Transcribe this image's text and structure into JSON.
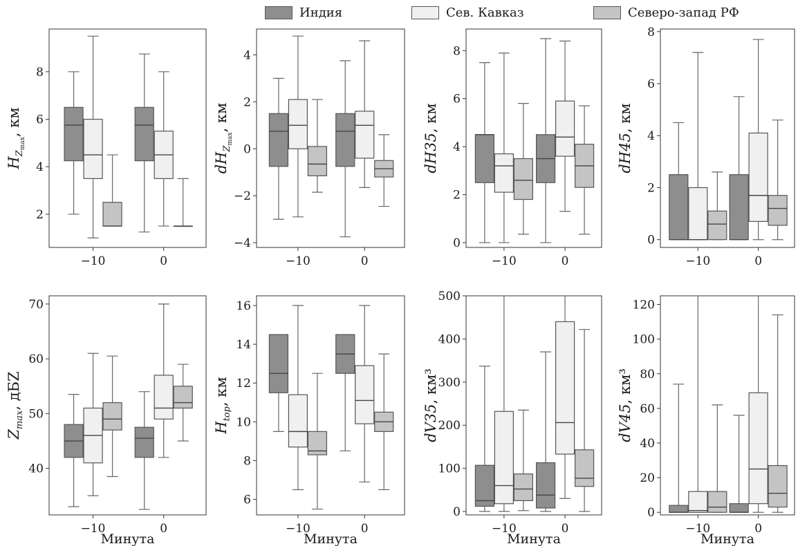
{
  "legend": {
    "items": [
      {
        "label": "Индия",
        "color": "#8e8e8e"
      },
      {
        "label": "Сев. Кавказ",
        "color": "#f0f0f0"
      },
      {
        "label": "Северо-запад РФ",
        "color": "#c4c4c4"
      }
    ]
  },
  "chart_data": [
    {
      "type": "box",
      "ylabel_main": "H",
      "ylabel_sub": "Z",
      "ylabel_subsub": "max",
      "ylabel_unit": ", км",
      "xlabel": "",
      "ylim": [
        0.6,
        9.8
      ],
      "yticks": [
        2,
        4,
        6,
        8
      ],
      "categories": [
        "−10",
        "0"
      ],
      "groups": [
        [
          {
            "min": 2,
            "q1": 4.25,
            "median": 5.75,
            "q3": 6.5,
            "max": 8
          },
          {
            "min": 1,
            "q1": 3.5,
            "median": 4.5,
            "q3": 6,
            "max": 9.5
          },
          {
            "min": 1.5,
            "q1": 1.5,
            "median": 1.5,
            "q3": 2.5,
            "max": 4.5
          }
        ],
        [
          {
            "min": 1.25,
            "q1": 4.25,
            "median": 5.75,
            "q3": 6.5,
            "max": 8.75
          },
          {
            "min": 1.5,
            "q1": 3.5,
            "median": 4.5,
            "q3": 5.5,
            "max": 8
          },
          {
            "min": 1.5,
            "q1": 1.5,
            "median": 1.5,
            "q3": 1.5,
            "max": 3.5
          }
        ]
      ]
    },
    {
      "type": "box",
      "ylabel_main": "dH",
      "ylabel_sub": "Z",
      "ylabel_subsub": "max",
      "ylabel_unit": ", км",
      "xlabel": "",
      "ylim": [
        -4.2,
        5.1
      ],
      "yticks": [
        -4,
        -2,
        0,
        2,
        4
      ],
      "categories": [
        "−10",
        "0"
      ],
      "groups": [
        [
          {
            "min": -3,
            "q1": -0.75,
            "median": 0.75,
            "q3": 1.5,
            "max": 3
          },
          {
            "min": -2.9,
            "q1": 0,
            "median": 1,
            "q3": 2.1,
            "max": 4.8
          },
          {
            "min": -1.85,
            "q1": -1.15,
            "median": -0.65,
            "q3": 0.1,
            "max": 2.1
          }
        ],
        [
          {
            "min": -3.75,
            "q1": -0.75,
            "median": 0.75,
            "q3": 1.5,
            "max": 3.75
          },
          {
            "min": -1.65,
            "q1": -0.4,
            "median": 1,
            "q3": 1.6,
            "max": 4.6
          },
          {
            "min": -2.45,
            "q1": -1.2,
            "median": -0.85,
            "q3": -0.5,
            "max": 0.6
          }
        ]
      ]
    },
    {
      "type": "box",
      "ylabel_main": "dH35",
      "ylabel_unit": ", км",
      "xlabel": "",
      "ylim": [
        -0.2,
        8.9
      ],
      "yticks": [
        0,
        2,
        4,
        6,
        8
      ],
      "categories": [
        "−10",
        "0"
      ],
      "groups": [
        [
          {
            "min": 0,
            "q1": 2.5,
            "median": 4.5,
            "q3": 4.5,
            "max": 7.5
          },
          {
            "min": 0,
            "q1": 2.1,
            "median": 3.2,
            "q3": 3.7,
            "max": 7.9
          },
          {
            "min": 0.35,
            "q1": 1.8,
            "median": 2.6,
            "q3": 3.5,
            "max": 5.8
          }
        ],
        [
          {
            "min": 0,
            "q1": 2.5,
            "median": 3.5,
            "q3": 4.5,
            "max": 8.5
          },
          {
            "min": 1.3,
            "q1": 3.6,
            "median": 4.4,
            "q3": 5.9,
            "max": 8.4
          },
          {
            "min": 0.35,
            "q1": 2.3,
            "median": 3.2,
            "q3": 4.1,
            "max": 5.7
          }
        ]
      ]
    },
    {
      "type": "box",
      "ylabel_main": "dH45",
      "ylabel_unit": ", км",
      "xlabel": "",
      "ylim": [
        -0.3,
        8.1
      ],
      "yticks": [
        0,
        2,
        4,
        6,
        8
      ],
      "categories": [
        "−10",
        "0"
      ],
      "groups": [
        [
          {
            "min": 0,
            "q1": 0,
            "median": 0,
            "q3": 2.5,
            "max": 4.5
          },
          {
            "min": 0,
            "q1": 0,
            "median": 0,
            "q3": 2,
            "max": 7.2
          },
          {
            "min": 0,
            "q1": 0,
            "median": 0.6,
            "q3": 1.1,
            "max": 2.6
          }
        ],
        [
          {
            "min": 0,
            "q1": 0,
            "median": 0,
            "q3": 2.5,
            "max": 5.5
          },
          {
            "min": 0,
            "q1": 0.7,
            "median": 1.7,
            "q3": 4.1,
            "max": 7.7
          },
          {
            "min": 0,
            "q1": 0.55,
            "median": 1.2,
            "q3": 1.7,
            "max": 4.6
          }
        ]
      ]
    },
    {
      "type": "box",
      "ylabel_main": "Z",
      "ylabel_sub": "max",
      "ylabel_unit": ", дБZ",
      "xlabel": "Минута",
      "ylim": [
        31.5,
        71.5
      ],
      "yticks": [
        40,
        50,
        60,
        70
      ],
      "categories": [
        "−10",
        "0"
      ],
      "groups": [
        [
          {
            "min": 33,
            "q1": 42,
            "median": 45,
            "q3": 48,
            "max": 53.5
          },
          {
            "min": 35,
            "q1": 41,
            "median": 46,
            "q3": 51,
            "max": 61
          },
          {
            "min": 38.5,
            "q1": 47,
            "median": 49,
            "q3": 52,
            "max": 60.5
          }
        ],
        [
          {
            "min": 32.5,
            "q1": 42,
            "median": 45.5,
            "q3": 47.5,
            "max": 54
          },
          {
            "min": 42,
            "q1": 49,
            "median": 51,
            "q3": 57,
            "max": 70
          },
          {
            "min": 45,
            "q1": 51,
            "median": 52,
            "q3": 55,
            "max": 59
          }
        ]
      ]
    },
    {
      "type": "box",
      "ylabel_main": "H",
      "ylabel_sub": "top",
      "ylabel_unit": ", км",
      "xlabel": "Минута",
      "ylim": [
        5.2,
        16.5
      ],
      "yticks": [
        6,
        8,
        10,
        12,
        14,
        16
      ],
      "categories": [
        "−10",
        "0"
      ],
      "groups": [
        [
          {
            "min": 9.5,
            "q1": 11.5,
            "median": 12.5,
            "q3": 14.5,
            "max": 14.5
          },
          {
            "min": 6.5,
            "q1": 8.7,
            "median": 9.5,
            "q3": 11.4,
            "max": 16
          },
          {
            "min": 5.5,
            "q1": 8.3,
            "median": 8.5,
            "q3": 9.5,
            "max": 12.5
          }
        ],
        [
          {
            "min": 8.5,
            "q1": 12.5,
            "median": 13.5,
            "q3": 14.5,
            "max": 14.5
          },
          {
            "min": 6.9,
            "q1": 9.9,
            "median": 11.1,
            "q3": 12.9,
            "max": 16
          },
          {
            "min": 6.5,
            "q1": 9.5,
            "median": 10,
            "q3": 10.5,
            "max": 13.5
          }
        ]
      ]
    },
    {
      "type": "box",
      "ylabel_main": "dV35",
      "ylabel_unit": ", км³",
      "xlabel": "Минута",
      "ylim": [
        -8,
        500
      ],
      "yticks": [
        0,
        100,
        200,
        300,
        400,
        500
      ],
      "categories": [
        "−10",
        "0"
      ],
      "groups": [
        [
          {
            "min": 0,
            "q1": 12,
            "median": 25,
            "q3": 107,
            "max": 337
          },
          {
            "min": 0,
            "q1": 18,
            "median": 60,
            "q3": 232,
            "max": 500
          },
          {
            "min": 2,
            "q1": 25,
            "median": 52,
            "q3": 87,
            "max": 235
          }
        ],
        [
          {
            "min": 0,
            "q1": 8,
            "median": 38,
            "q3": 113,
            "max": 370
          },
          {
            "min": 30,
            "q1": 133,
            "median": 206,
            "q3": 440,
            "max": 500
          },
          {
            "min": 0,
            "q1": 58,
            "median": 77,
            "q3": 143,
            "max": 422
          }
        ]
      ]
    },
    {
      "type": "box",
      "ylabel_main": "dV45",
      "ylabel_unit": ", км³",
      "xlabel": "Минута",
      "ylim": [
        -1.5,
        125
      ],
      "yticks": [
        0,
        20,
        40,
        60,
        80,
        100,
        120
      ],
      "categories": [
        "−10",
        "0"
      ],
      "groups": [
        [
          {
            "min": 0,
            "q1": 0,
            "median": 0,
            "q3": 4,
            "max": 74
          },
          {
            "min": 0,
            "q1": 0,
            "median": 1,
            "q3": 12,
            "max": 125
          },
          {
            "min": 0,
            "q1": 0,
            "median": 3,
            "q3": 12,
            "max": 62
          }
        ],
        [
          {
            "min": 0,
            "q1": 0,
            "median": 0,
            "q3": 5,
            "max": 56
          },
          {
            "min": 0,
            "q1": 5,
            "median": 25,
            "q3": 69,
            "max": 125
          },
          {
            "min": 0,
            "q1": 3,
            "median": 11,
            "q3": 27,
            "max": 114
          }
        ]
      ]
    }
  ]
}
